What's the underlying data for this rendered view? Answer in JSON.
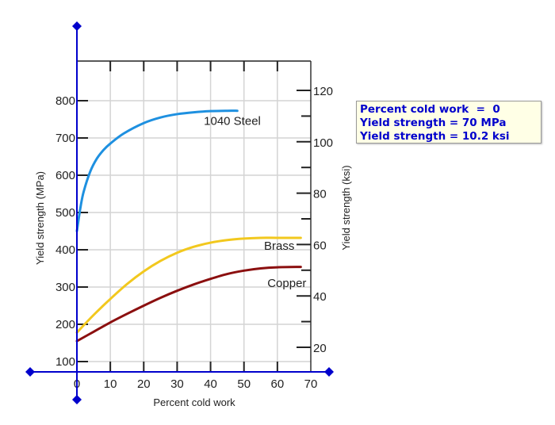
{
  "chart_data": {
    "type": "line",
    "title": "",
    "xlabel": "Percent cold work",
    "ylabel": "Yield strength (MPa)",
    "y2label": "Yield strength (ksi)",
    "xlim": [
      0,
      70
    ],
    "ylim": [
      70,
      900
    ],
    "y2lim": [
      10.2,
      130
    ],
    "x_ticks": [
      "0",
      "10",
      "20",
      "30",
      "40",
      "50",
      "60",
      "70"
    ],
    "y_ticks": [
      "100",
      "200",
      "300",
      "400",
      "500",
      "600",
      "700",
      "800"
    ],
    "y2_ticks": [
      "20",
      "40",
      "60",
      "80",
      "100",
      "120"
    ],
    "grid": true,
    "series": [
      {
        "name": "1040 Steel",
        "color": "#1e90e0",
        "x": [
          0,
          1,
          2,
          4,
          6,
          8,
          10,
          14,
          20,
          25,
          30,
          35,
          40,
          45,
          48
        ],
        "values": [
          450,
          510,
          555,
          610,
          645,
          668,
          685,
          712,
          740,
          755,
          764,
          769,
          772,
          773,
          773
        ]
      },
      {
        "name": "Brass",
        "color": "#f2c81e",
        "x": [
          0,
          5,
          10,
          15,
          20,
          25,
          30,
          35,
          40,
          45,
          50,
          55,
          60,
          67
        ],
        "values": [
          178,
          225,
          268,
          308,
          342,
          370,
          392,
          408,
          419,
          426,
          430,
          432,
          432,
          432
        ]
      },
      {
        "name": "Copper",
        "color": "#8b0f0f",
        "x": [
          0,
          5,
          10,
          15,
          20,
          25,
          30,
          35,
          40,
          45,
          50,
          55,
          60,
          67
        ],
        "values": [
          155,
          180,
          205,
          228,
          250,
          271,
          290,
          307,
          322,
          335,
          344,
          350,
          353,
          354
        ]
      }
    ],
    "annotations": [
      {
        "text": "1040 Steel",
        "x": 38,
        "y": 735
      },
      {
        "text": "Brass",
        "x": 56,
        "y": 400
      },
      {
        "text": "Copper",
        "x": 57,
        "y": 300
      }
    ]
  },
  "readout": {
    "line1": "Percent cold work  =  0",
    "line2": "Yield strength = 70 MPa",
    "line3": "Yield strength = 10.2 ksi"
  },
  "cursor": {
    "percent_cold_work": 0,
    "yield_mpa": 70,
    "yield_ksi": 10.2,
    "color": "#0000cc"
  }
}
